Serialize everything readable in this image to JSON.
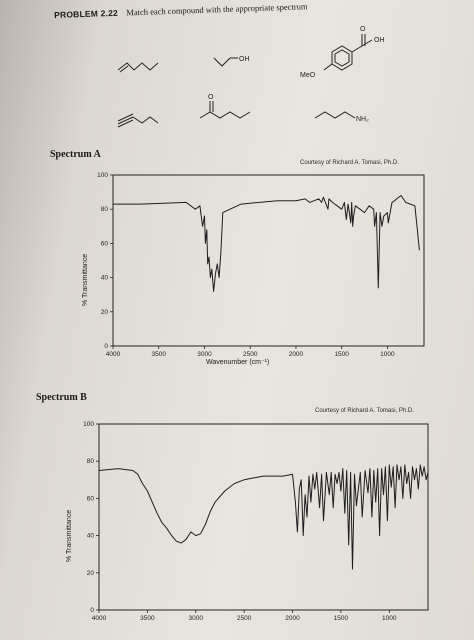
{
  "problem": {
    "number": "PROBLEM 2.22",
    "instruction": "Match each compound with the appropriate spectrum"
  },
  "compounds": [
    {
      "label": ""
    },
    {
      "label": "OH"
    },
    {
      "label": "OH",
      "sub_label": "MeO",
      "carbonyl": "O"
    },
    {
      "label": ""
    },
    {
      "label": "",
      "carbonyl": "O"
    },
    {
      "label": "NH₂"
    }
  ],
  "spectrum_a": {
    "label": "Spectrum A",
    "courtesy": "Courtesy of Richard A. Tomasi, Ph.D.",
    "ylabel": "% Transmittance",
    "xlabel": "Wavenumber (cm⁻¹)"
  },
  "spectrum_b": {
    "label": "Spectrum B",
    "courtesy": "Courtesy of Richard A. Tomasi, Ph.D.",
    "ylabel": "% Transmittance"
  },
  "chart_data": [
    {
      "type": "line",
      "xlabel": "Wavenumber (cm⁻¹)",
      "ylabel": "% Transmittance",
      "xlim": [
        4000,
        600
      ],
      "ylim": [
        0,
        100
      ],
      "xticks": [
        4000,
        3500,
        3000,
        2500,
        2000,
        1500,
        1000
      ],
      "yticks": [
        0,
        20,
        40,
        60,
        80,
        100
      ],
      "series": [
        {
          "x": [
            4000,
            3700,
            3200,
            3100,
            3050,
            3020,
            3000,
            2990,
            2975,
            2965,
            2950,
            2935,
            2920,
            2900,
            2880,
            2860,
            2840,
            2820,
            2800,
            2600,
            2400,
            2200,
            2000,
            1900,
            1850,
            1800,
            1750,
            1720,
            1700,
            1650,
            1640,
            1600,
            1550,
            1500,
            1470,
            1450,
            1430,
            1400,
            1390,
            1380,
            1370,
            1350,
            1300,
            1250,
            1200,
            1150,
            1140,
            1120,
            1100,
            1080,
            1060,
            1040,
            1000,
            990,
            950,
            920,
            900,
            850,
            800,
            700,
            650
          ],
          "y": [
            83,
            83,
            84,
            80,
            82,
            70,
            76,
            60,
            68,
            48,
            52,
            40,
            45,
            32,
            42,
            48,
            40,
            55,
            78,
            83,
            84,
            85,
            85,
            86,
            84,
            85,
            86,
            84,
            87,
            80,
            86,
            84,
            82,
            80,
            84,
            74,
            83,
            72,
            84,
            70,
            76,
            82,
            80,
            78,
            82,
            80,
            70,
            78,
            34,
            78,
            70,
            76,
            78,
            72,
            84,
            85,
            86,
            88,
            84,
            82,
            56
          ]
        }
      ]
    },
    {
      "type": "line",
      "ylabel": "% Transmittance",
      "xlim": [
        4000,
        600
      ],
      "ylim": [
        0,
        100
      ],
      "xticks": [
        4000,
        3500,
        3000,
        2500,
        2000,
        1500,
        1000
      ],
      "yticks": [
        0,
        20,
        40,
        60,
        80,
        100
      ],
      "series": [
        {
          "x": [
            4000,
            3800,
            3650,
            3600,
            3550,
            3500,
            3450,
            3400,
            3350,
            3300,
            3250,
            3200,
            3150,
            3100,
            3050,
            3000,
            2950,
            2900,
            2850,
            2800,
            2700,
            2600,
            2500,
            2400,
            2300,
            2200,
            2100,
            2000,
            1970,
            1950,
            1930,
            1910,
            1890,
            1870,
            1850,
            1830,
            1810,
            1790,
            1770,
            1750,
            1720,
            1700,
            1680,
            1650,
            1620,
            1600,
            1580,
            1560,
            1540,
            1520,
            1500,
            1480,
            1460,
            1440,
            1420,
            1400,
            1380,
            1360,
            1340,
            1300,
            1280,
            1250,
            1220,
            1200,
            1180,
            1160,
            1140,
            1120,
            1100,
            1080,
            1060,
            1040,
            1020,
            1000,
            980,
            960,
            940,
            920,
            900,
            880,
            860,
            840,
            820,
            800,
            780,
            760,
            740,
            720,
            700,
            680,
            660,
            640,
            620,
            600
          ],
          "y": [
            75,
            76,
            75,
            73,
            68,
            64,
            58,
            52,
            47,
            44,
            40,
            37,
            36,
            38,
            42,
            40,
            41,
            46,
            53,
            58,
            64,
            68,
            70,
            71,
            72,
            72,
            72,
            73,
            58,
            42,
            65,
            70,
            40,
            62,
            50,
            72,
            58,
            73,
            65,
            74,
            55,
            73,
            48,
            74,
            62,
            74,
            55,
            73,
            68,
            74,
            64,
            76,
            52,
            75,
            35,
            74,
            22,
            73,
            56,
            74,
            50,
            75,
            63,
            76,
            50,
            75,
            58,
            76,
            40,
            76,
            62,
            77,
            48,
            78,
            66,
            77,
            55,
            78,
            70,
            77,
            60,
            78,
            68,
            74,
            60,
            77,
            70,
            76,
            65,
            78,
            72,
            77,
            70,
            74
          ]
        }
      ]
    }
  ]
}
